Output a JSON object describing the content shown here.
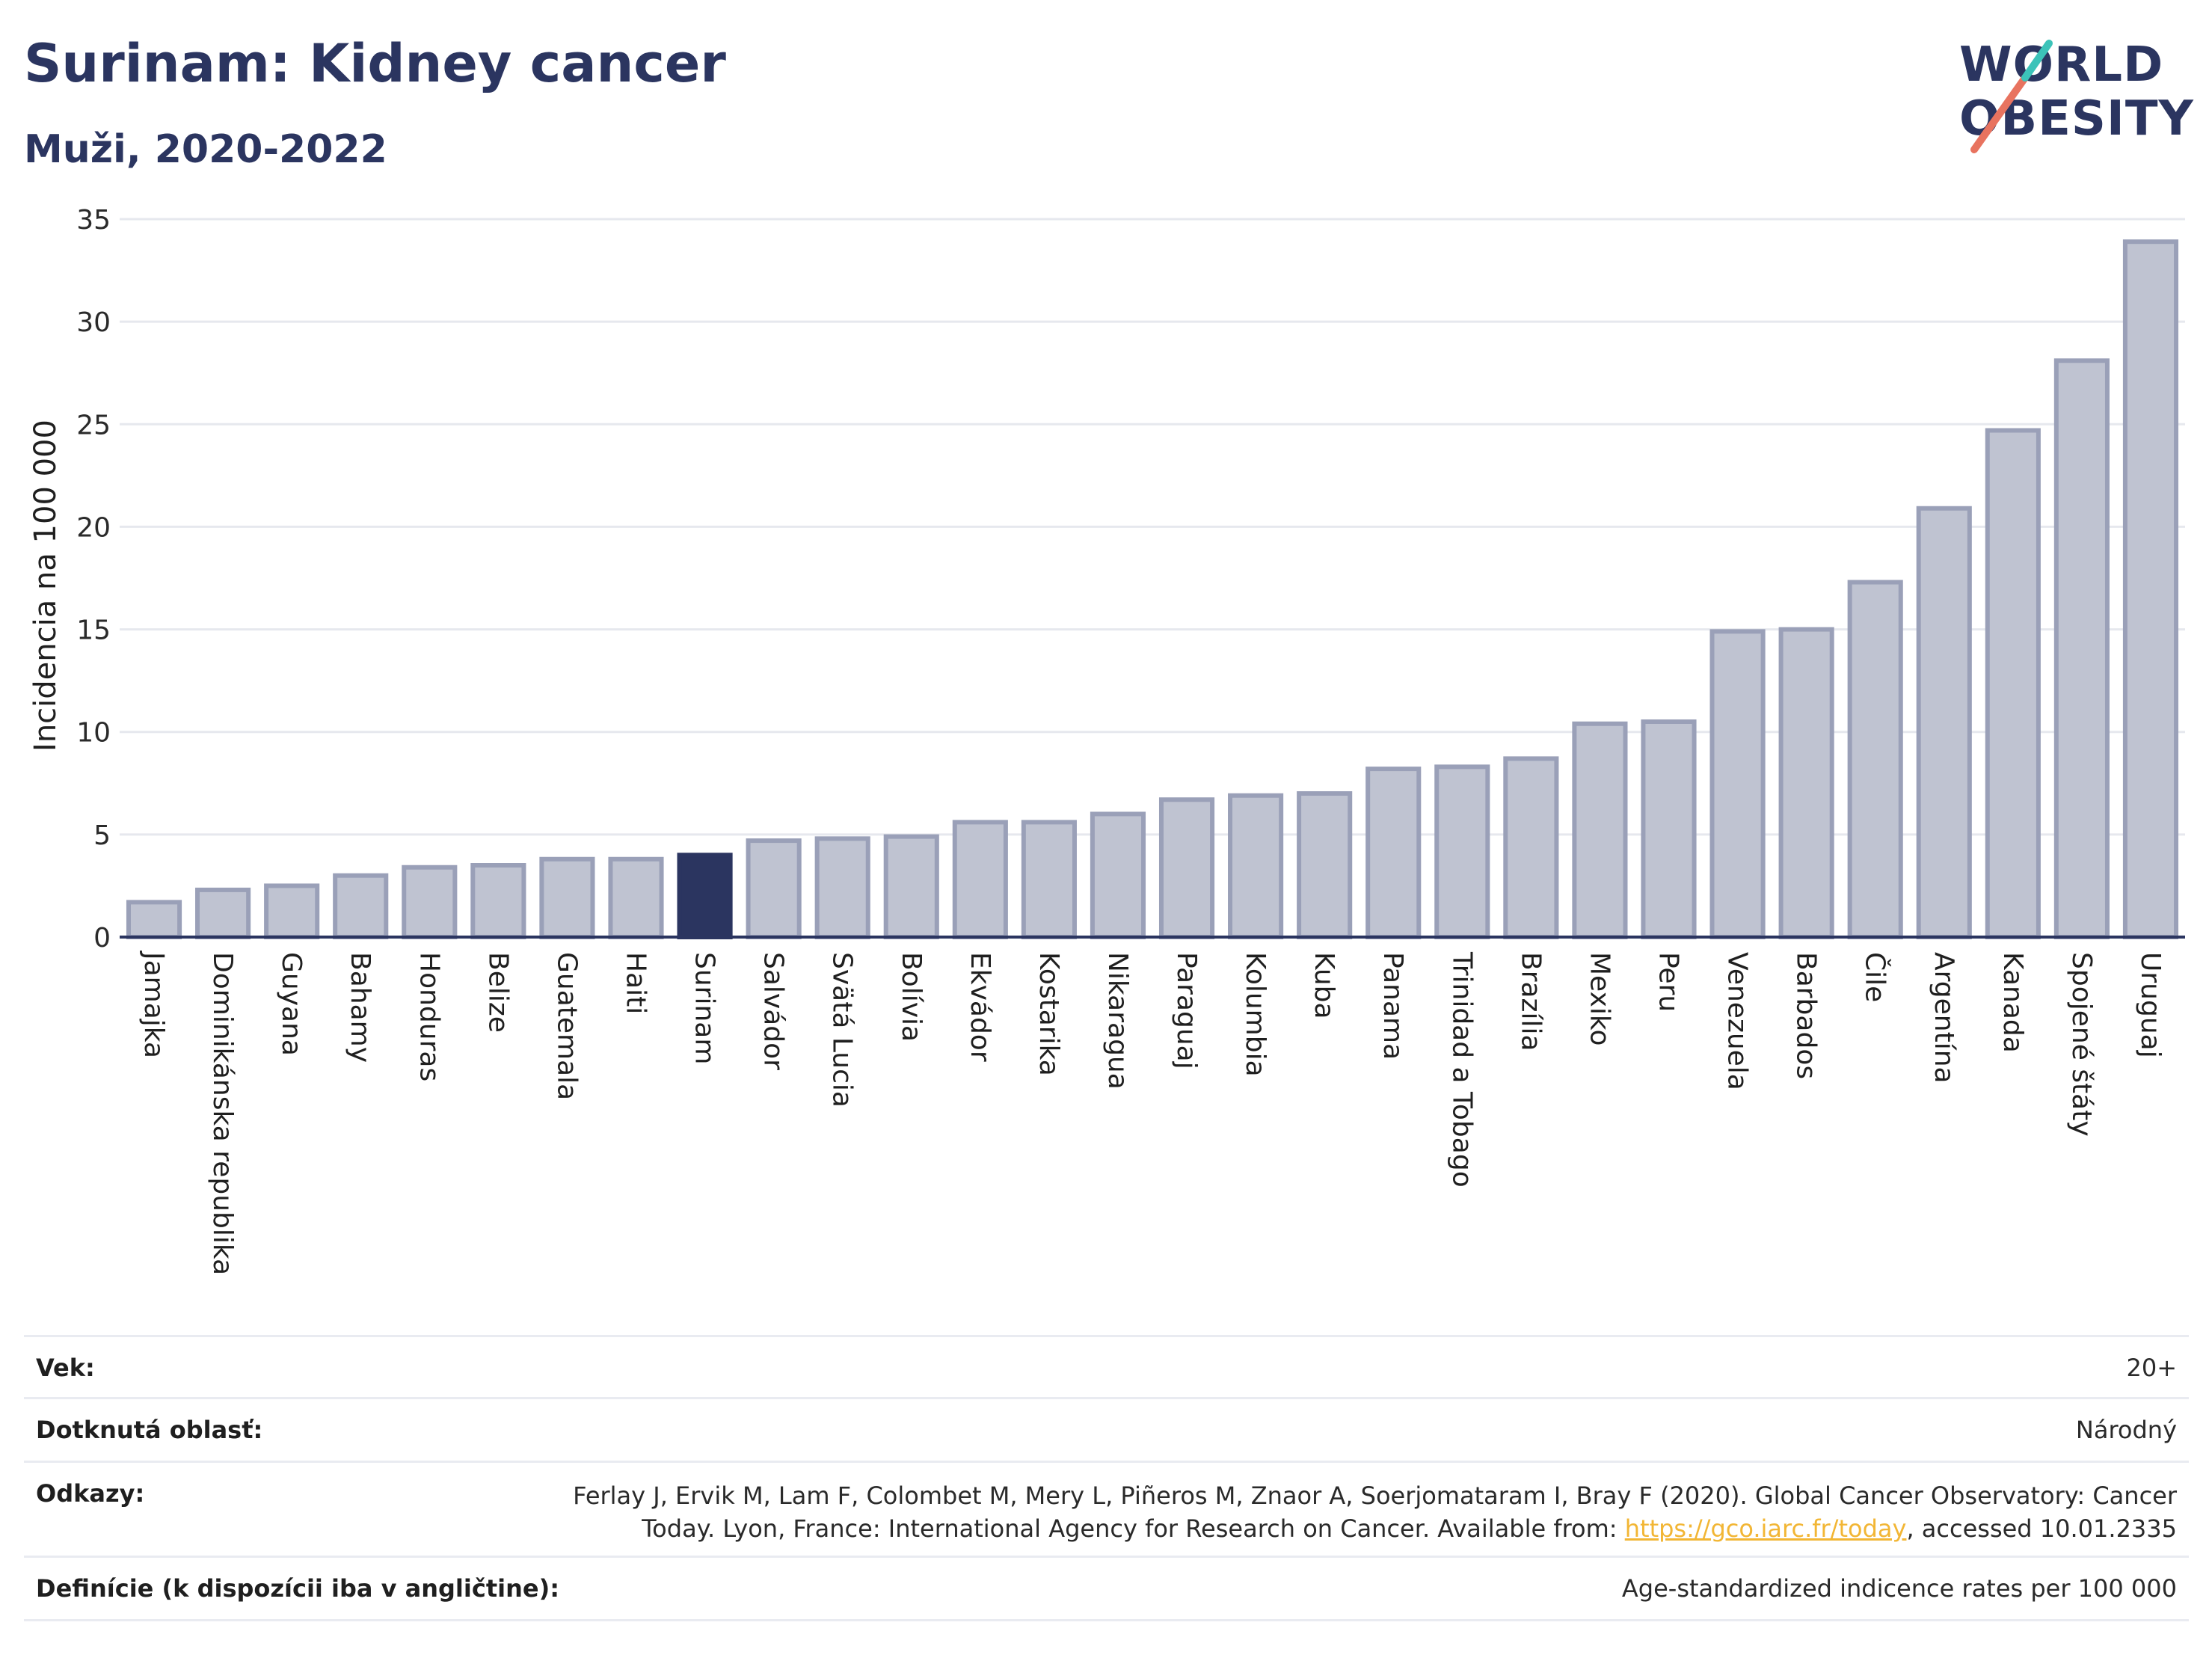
{
  "header": {
    "title": "Surinam: Kidney cancer",
    "subtitle": "Muži, 2020-2022"
  },
  "logo": {
    "line1": "WORLD",
    "line2": "OBESITY",
    "accent_colors": [
      "#e8735f",
      "#3cc3b9"
    ]
  },
  "chart_data": {
    "type": "bar",
    "ylabel": "Incidencia na 100 000",
    "ylim": [
      0,
      35
    ],
    "yticks": [
      0,
      5,
      10,
      15,
      20,
      25,
      30,
      35
    ],
    "grid": true,
    "highlight": "Surinam",
    "colors": {
      "bar": "#bfc3d1",
      "bar_border": "#9aa0b8",
      "highlight": "#2b3560",
      "grid": "#e6e8ee",
      "axis": "#2b3560"
    },
    "categories": [
      "Jamajka",
      "Dominikánska republika",
      "Guyana",
      "Bahamy",
      "Honduras",
      "Belize",
      "Guatemala",
      "Haiti",
      "Surinam",
      "Salvádor",
      "Svätá Lucia",
      "Bolívia",
      "Ekvádor",
      "Kostarika",
      "Nikaragua",
      "Paraguaj",
      "Kolumbia",
      "Kuba",
      "Panama",
      "Trinidad a Tobago",
      "Brazília",
      "Mexiko",
      "Peru",
      "Venezuela",
      "Barbados",
      "Čile",
      "Argentína",
      "Kanada",
      "Spojené štáty",
      "Uruguaj"
    ],
    "values": [
      1.7,
      2.3,
      2.5,
      3.0,
      3.4,
      3.5,
      3.8,
      3.8,
      4.0,
      4.7,
      4.8,
      4.9,
      5.6,
      5.6,
      6.0,
      6.7,
      6.9,
      7.0,
      8.2,
      8.3,
      8.7,
      10.4,
      10.5,
      14.9,
      15.0,
      17.3,
      20.9,
      24.7,
      28.1,
      33.9
    ]
  },
  "meta": {
    "age_label": "Vek:",
    "age_value": "20+",
    "area_label": "Dotknutá oblasť:",
    "area_value": "Národný",
    "refs_label": "Odkazy:",
    "refs_line1": "Ferlay J, Ervik M, Lam F, Colombet M, Mery L, Piñeros M, Znaor A, Soerjomataram I, Bray F (2020). Global Cancer Observatory: Cancer",
    "refs_line2_pre": "Today. Lyon, France: International Agency for Research on Cancer. Available from: ",
    "refs_link": "https://gco.iarc.fr/today",
    "refs_line2_post": ", accessed 10.01.2335",
    "def_label": "Definície (k dispozícii iba v angličtine):",
    "def_value": "Age-standardized indicence rates per 100 000"
  }
}
